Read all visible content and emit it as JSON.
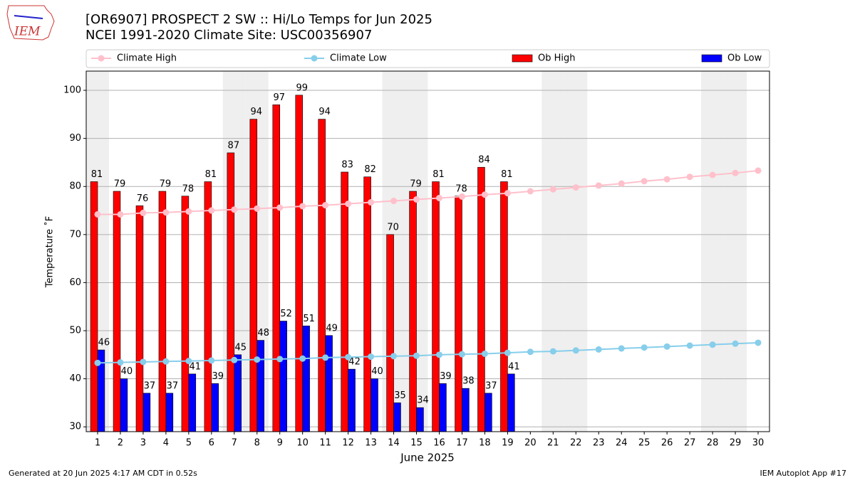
{
  "logo_text": "IEM",
  "chart_data": {
    "type": "bar",
    "title": "[OR6907] PROSPECT 2 SW :: Hi/Lo Temps for Jun 2025",
    "subtitle": "NCEI 1991-2020 Climate Site: USC00356907",
    "x_label": "June 2025",
    "y_label": "Temperature ˚F",
    "footer_left": "Generated at 20 Jun 2025 4:17 AM CDT in 0.52s",
    "footer_right": "IEM Autoplot App #17",
    "categories": [
      "1",
      "2",
      "3",
      "4",
      "5",
      "6",
      "7",
      "8",
      "9",
      "10",
      "11",
      "12",
      "13",
      "14",
      "15",
      "16",
      "17",
      "18",
      "19",
      "20",
      "21",
      "22",
      "23",
      "24",
      "25",
      "26",
      "27",
      "28",
      "29",
      "30"
    ],
    "ylim": [
      29,
      104
    ],
    "yticks": [
      30,
      40,
      50,
      60,
      70,
      80,
      90,
      100
    ],
    "grid": true,
    "series": [
      {
        "name": "Climate High",
        "type": "line",
        "color": "#ffc0cb",
        "values": [
          74.2,
          74.2,
          74.5,
          74.6,
          74.8,
          75.0,
          75.2,
          75.4,
          75.6,
          75.9,
          76.1,
          76.4,
          76.7,
          77.0,
          77.3,
          77.6,
          77.9,
          78.3,
          78.6,
          79.0,
          79.4,
          79.8,
          80.2,
          80.6,
          81.1,
          81.5,
          82.0,
          82.4,
          82.8,
          83.3
        ]
      },
      {
        "name": "Climate Low",
        "type": "line",
        "color": "#87ceeb",
        "values": [
          43.3,
          43.4,
          43.5,
          43.6,
          43.7,
          43.8,
          43.9,
          44.0,
          44.1,
          44.2,
          44.4,
          44.5,
          44.6,
          44.7,
          44.8,
          45.0,
          45.1,
          45.2,
          45.4,
          45.6,
          45.7,
          45.9,
          46.1,
          46.3,
          46.5,
          46.7,
          46.9,
          47.1,
          47.3,
          47.5
        ]
      },
      {
        "name": "Ob High",
        "type": "bar",
        "color": "#ff0000",
        "values": [
          81,
          79,
          76,
          79,
          78,
          81,
          87,
          94,
          97,
          99,
          94,
          83,
          82,
          70,
          79,
          81,
          78,
          84,
          81,
          null,
          null,
          null,
          null,
          null,
          null,
          null,
          null,
          null,
          null,
          null
        ]
      },
      {
        "name": "Ob Low",
        "type": "bar",
        "color": "#0000ff",
        "values": [
          46,
          40,
          37,
          37,
          41,
          39,
          45,
          48,
          52,
          51,
          49,
          42,
          40,
          35,
          34,
          39,
          38,
          37,
          41,
          null,
          null,
          null,
          null,
          null,
          null,
          null,
          null,
          null,
          null,
          null
        ]
      }
    ]
  }
}
